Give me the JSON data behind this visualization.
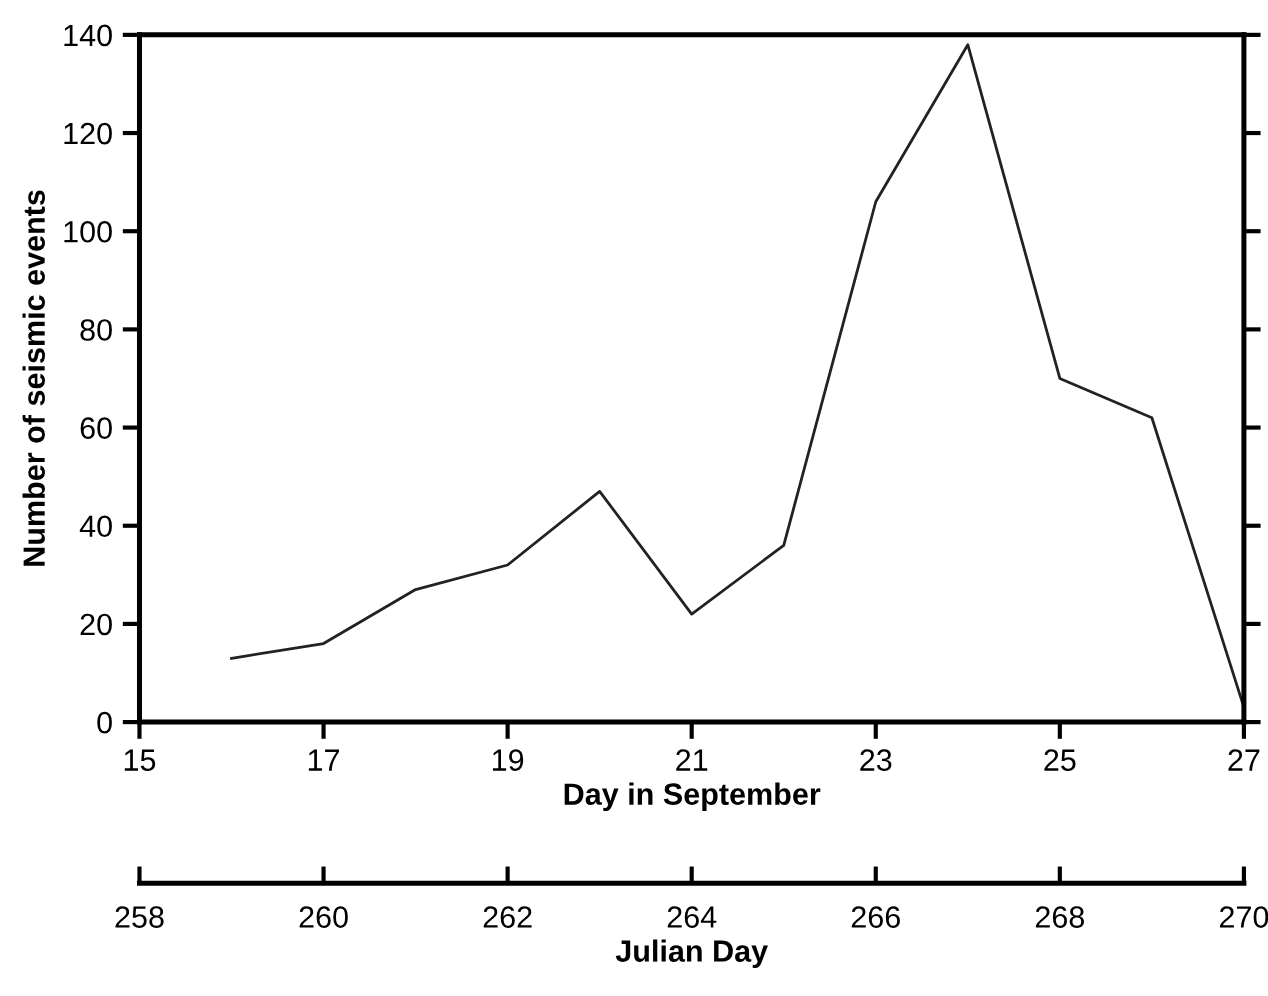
{
  "chart_data": {
    "type": "line",
    "x": [
      16,
      17,
      18,
      19,
      20,
      21,
      22,
      23,
      24,
      25,
      26,
      27
    ],
    "series": [
      {
        "color": "#222222",
        "values": [
          13,
          16,
          27,
          32,
          47,
          22,
          36,
          106,
          138,
          70,
          62,
          3
        ]
      }
    ],
    "xlabel": "Day in September",
    "ylabel": "Number of seismic events",
    "x2label": "Julian Day",
    "xlim": [
      15,
      27
    ],
    "xticks": [
      15,
      17,
      19,
      21,
      23,
      25,
      27
    ],
    "x2lim": [
      258,
      270
    ],
    "x2ticks": [
      258,
      260,
      262,
      264,
      266,
      268,
      270
    ],
    "ylim": [
      0,
      140
    ],
    "yticks": [
      0,
      20,
      40,
      60,
      80,
      100,
      120,
      140
    ],
    "grid": false,
    "marker": "none",
    "line_style": "solid"
  }
}
